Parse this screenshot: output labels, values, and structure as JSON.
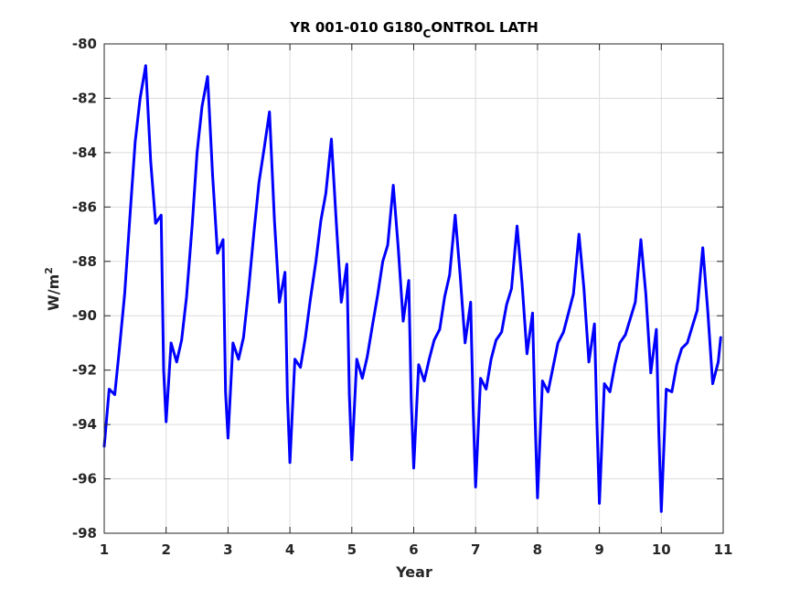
{
  "chart_data": {
    "type": "line",
    "title_main": "YR 001-010 G180",
    "title_sub": "C",
    "title_rest": "ONTROL LATH",
    "xlabel": "Year",
    "ylabel_base": "W/m",
    "ylabel_sup": "2",
    "xlim": [
      1,
      11
    ],
    "ylim": [
      -98,
      -80
    ],
    "xticks": [
      1,
      2,
      3,
      4,
      5,
      6,
      7,
      8,
      9,
      10,
      11
    ],
    "yticks": [
      -98,
      -96,
      -94,
      -92,
      -90,
      -88,
      -86,
      -84,
      -82,
      -80
    ],
    "grid": true,
    "series": [
      {
        "color": "#0000ff",
        "x": [
          1.0,
          1.08,
          1.17,
          1.25,
          1.33,
          1.42,
          1.5,
          1.58,
          1.67,
          1.75,
          1.83,
          1.92,
          1.96,
          2.0,
          2.08,
          2.17,
          2.25,
          2.33,
          2.42,
          2.5,
          2.58,
          2.67,
          2.75,
          2.83,
          2.92,
          2.96,
          3.0,
          3.08,
          3.17,
          3.25,
          3.33,
          3.42,
          3.5,
          3.58,
          3.67,
          3.75,
          3.83,
          3.92,
          3.96,
          4.0,
          4.08,
          4.17,
          4.25,
          4.33,
          4.42,
          4.5,
          4.58,
          4.67,
          4.75,
          4.83,
          4.92,
          4.96,
          5.0,
          5.08,
          5.17,
          5.25,
          5.33,
          5.42,
          5.5,
          5.58,
          5.67,
          5.75,
          5.83,
          5.92,
          5.96,
          6.0,
          6.08,
          6.17,
          6.25,
          6.33,
          6.42,
          6.5,
          6.58,
          6.67,
          6.75,
          6.83,
          6.92,
          6.96,
          7.0,
          7.08,
          7.17,
          7.25,
          7.33,
          7.42,
          7.5,
          7.58,
          7.67,
          7.75,
          7.83,
          7.92,
          7.96,
          8.0,
          8.08,
          8.17,
          8.25,
          8.33,
          8.42,
          8.5,
          8.58,
          8.67,
          8.75,
          8.83,
          8.92,
          8.96,
          9.0,
          9.08,
          9.17,
          9.25,
          9.33,
          9.42,
          9.5,
          9.58,
          9.67,
          9.75,
          9.83,
          9.92,
          9.96,
          10.0,
          10.08,
          10.17,
          10.25,
          10.33,
          10.42,
          10.5,
          10.58,
          10.67,
          10.75,
          10.83,
          10.92,
          10.96
        ],
        "y": [
          -94.8,
          -92.7,
          -92.9,
          -91.1,
          -89.2,
          -86.2,
          -83.6,
          -82.0,
          -80.8,
          -84.3,
          -86.6,
          -86.3,
          -92.0,
          -93.9,
          -91.0,
          -91.7,
          -90.9,
          -89.3,
          -86.7,
          -84.0,
          -82.3,
          -81.2,
          -84.8,
          -87.7,
          -87.2,
          -92.8,
          -94.5,
          -91.0,
          -91.6,
          -90.8,
          -89.1,
          -86.9,
          -85.1,
          -83.9,
          -82.5,
          -86.5,
          -89.5,
          -88.4,
          -93.0,
          -95.4,
          -91.6,
          -91.9,
          -90.8,
          -89.4,
          -88.0,
          -86.5,
          -85.5,
          -83.5,
          -86.6,
          -89.5,
          -88.1,
          -92.9,
          -95.3,
          -91.6,
          -92.3,
          -91.5,
          -90.4,
          -89.2,
          -88.0,
          -87.4,
          -85.2,
          -87.5,
          -90.2,
          -88.7,
          -93.1,
          -95.6,
          -91.8,
          -92.4,
          -91.6,
          -90.9,
          -90.5,
          -89.3,
          -88.5,
          -86.3,
          -88.5,
          -91.0,
          -89.5,
          -93.4,
          -96.3,
          -92.3,
          -92.7,
          -91.6,
          -90.9,
          -90.6,
          -89.6,
          -89.0,
          -86.7,
          -88.8,
          -91.4,
          -89.9,
          -93.7,
          -96.7,
          -92.4,
          -92.8,
          -91.9,
          -91.0,
          -90.6,
          -89.9,
          -89.2,
          -87.0,
          -89.0,
          -91.7,
          -90.3,
          -93.9,
          -96.9,
          -92.5,
          -92.8,
          -91.8,
          -91.0,
          -90.7,
          -90.1,
          -89.5,
          -87.2,
          -89.2,
          -92.1,
          -90.5,
          -94.3,
          -97.2,
          -92.7,
          -92.8,
          -91.8,
          -91.2,
          -91.0,
          -90.4,
          -89.8,
          -87.5,
          -89.8,
          -92.5,
          -91.7,
          -90.8
        ]
      }
    ]
  }
}
